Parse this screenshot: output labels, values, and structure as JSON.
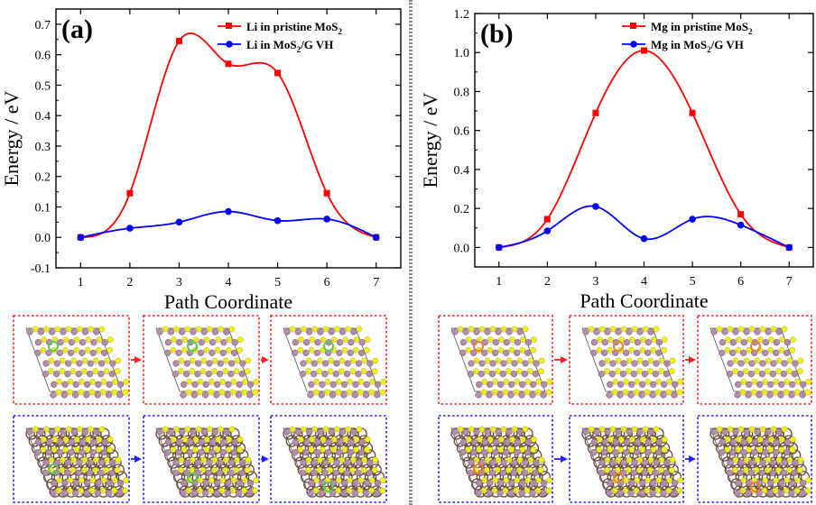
{
  "chart_data": [
    {
      "type": "line",
      "panel_label": "(a)",
      "xlabel": "Path Coordinate",
      "ylabel": "Energy / eV",
      "x": [
        1,
        2,
        3,
        4,
        5,
        6,
        7
      ],
      "xlim": [
        0.5,
        7.5
      ],
      "ylim": [
        -0.1,
        0.75
      ],
      "x_ticks": [
        "1",
        "2",
        "3",
        "4",
        "5",
        "6",
        "7"
      ],
      "y_ticks": [
        "-0.1",
        "0.0",
        "0.1",
        "0.2",
        "0.3",
        "0.4",
        "0.5",
        "0.6",
        "0.7"
      ],
      "legend_position": "top-right",
      "series": [
        {
          "name": "Li in pristine MoS",
          "sub": "2",
          "color": "#ff0000",
          "marker": "square",
          "values": [
            0.0,
            0.145,
            0.645,
            0.57,
            0.54,
            0.145,
            0.0
          ]
        },
        {
          "name": "Li in MoS",
          "sub": "2",
          "tail": "/G VH",
          "color": "#0000ff",
          "marker": "circle",
          "values": [
            0.0,
            0.03,
            0.05,
            0.085,
            0.055,
            0.06,
            0.0
          ]
        }
      ]
    },
    {
      "type": "line",
      "panel_label": "(b)",
      "xlabel": "Path Coordinate",
      "ylabel": "Energy / eV",
      "x": [
        1,
        2,
        3,
        4,
        5,
        6,
        7
      ],
      "xlim": [
        0.5,
        7.5
      ],
      "ylim": [
        -0.1,
        1.2
      ],
      "x_ticks": [
        "1",
        "2",
        "3",
        "4",
        "5",
        "6",
        "7"
      ],
      "y_ticks": [
        "0.0",
        "0.2",
        "0.4",
        "0.6",
        "0.8",
        "1.0",
        "1.2"
      ],
      "legend_position": "top-right",
      "series": [
        {
          "name": "Mg in pristine MoS",
          "sub": "2",
          "color": "#ff0000",
          "marker": "square",
          "values": [
            0.0,
            0.145,
            0.69,
            1.01,
            0.69,
            0.17,
            0.0
          ]
        },
        {
          "name": "Mg in MoS",
          "sub": "2",
          "tail": "/G VH",
          "color": "#0000ff",
          "marker": "circle",
          "values": [
            0.0,
            0.085,
            0.21,
            0.045,
            0.145,
            0.115,
            0.0
          ]
        }
      ]
    }
  ],
  "structures": {
    "pristine_box_color": "#ff2020",
    "heterostructure_box_color": "#2020ff",
    "mo_atom_color": "#b08aa8",
    "s_atom_color": "#f2f21a",
    "li_ion_color": "#5cc85c",
    "mg_ion_color": "#e8823a"
  }
}
